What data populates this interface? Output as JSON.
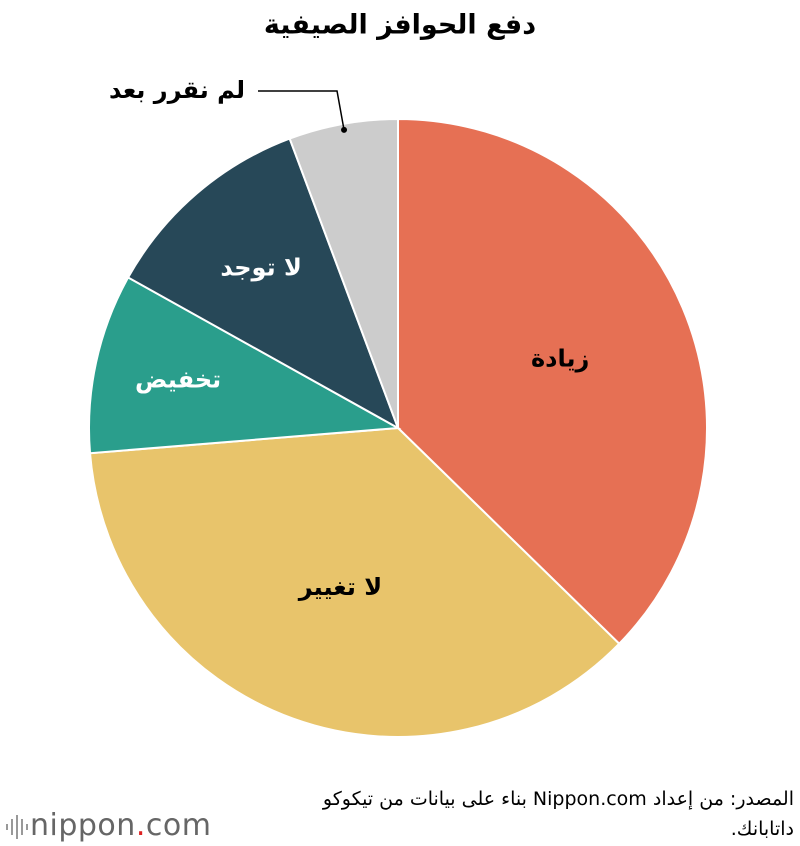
{
  "chart_data": {
    "type": "pie",
    "title": "دفع الحوافز الصيفية",
    "categories": [
      "زيادة",
      "لا تغيير",
      "تخفيض",
      "لا توجد",
      "لم نقرر بعد"
    ],
    "values": [
      37.3,
      36.4,
      9.4,
      11.2,
      5.7
    ],
    "colors": [
      "#e67054",
      "#e8c46b",
      "#2a9e8c",
      "#274858",
      "#cccccc"
    ],
    "label_colors": [
      "#000000",
      "#000000",
      "#ffffff",
      "#ffffff",
      "#000000"
    ],
    "source": "المصدر: من إعداد Nippon.com بناء على بيانات من تيكوكو داتابانك."
  },
  "logo": {
    "parts": [
      "nippon",
      ".",
      "com"
    ]
  }
}
